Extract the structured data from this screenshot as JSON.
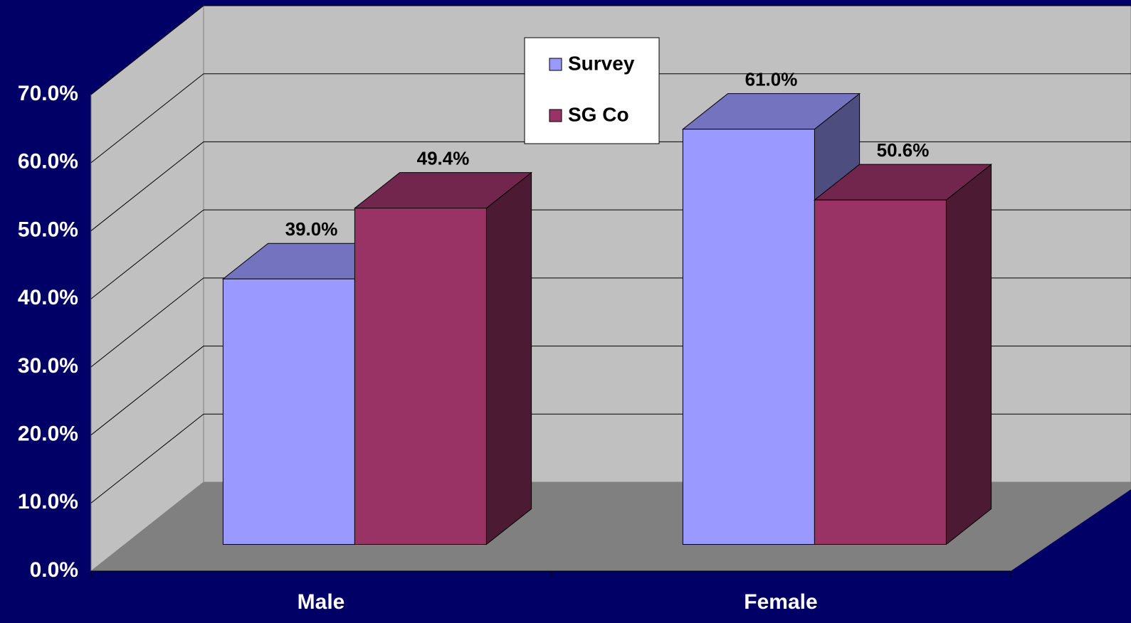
{
  "chart_data": {
    "type": "bar3d",
    "categories": [
      "Male",
      "Female"
    ],
    "series": [
      {
        "name": "Survey",
        "color": "#9999ff",
        "values": [
          39.0,
          61.0
        ],
        "value_labels": [
          "39.0%",
          "61.0%"
        ]
      },
      {
        "name": "SG Co",
        "color": "#993366",
        "values": [
          49.4,
          50.6
        ],
        "value_labels": [
          "49.4%",
          "50.6%"
        ]
      }
    ],
    "ylim": [
      0,
      70
    ],
    "yticks": [
      {
        "value": 0,
        "label": "0.0%"
      },
      {
        "value": 10,
        "label": "10.0%"
      },
      {
        "value": 20,
        "label": "20.0%"
      },
      {
        "value": 30,
        "label": "30.0%"
      },
      {
        "value": 40,
        "label": "40.0%"
      },
      {
        "value": 50,
        "label": "50.0%"
      },
      {
        "value": 60,
        "label": "60.0%"
      },
      {
        "value": 70,
        "label": "70.0%"
      }
    ],
    "grid": true,
    "legend": "top"
  }
}
